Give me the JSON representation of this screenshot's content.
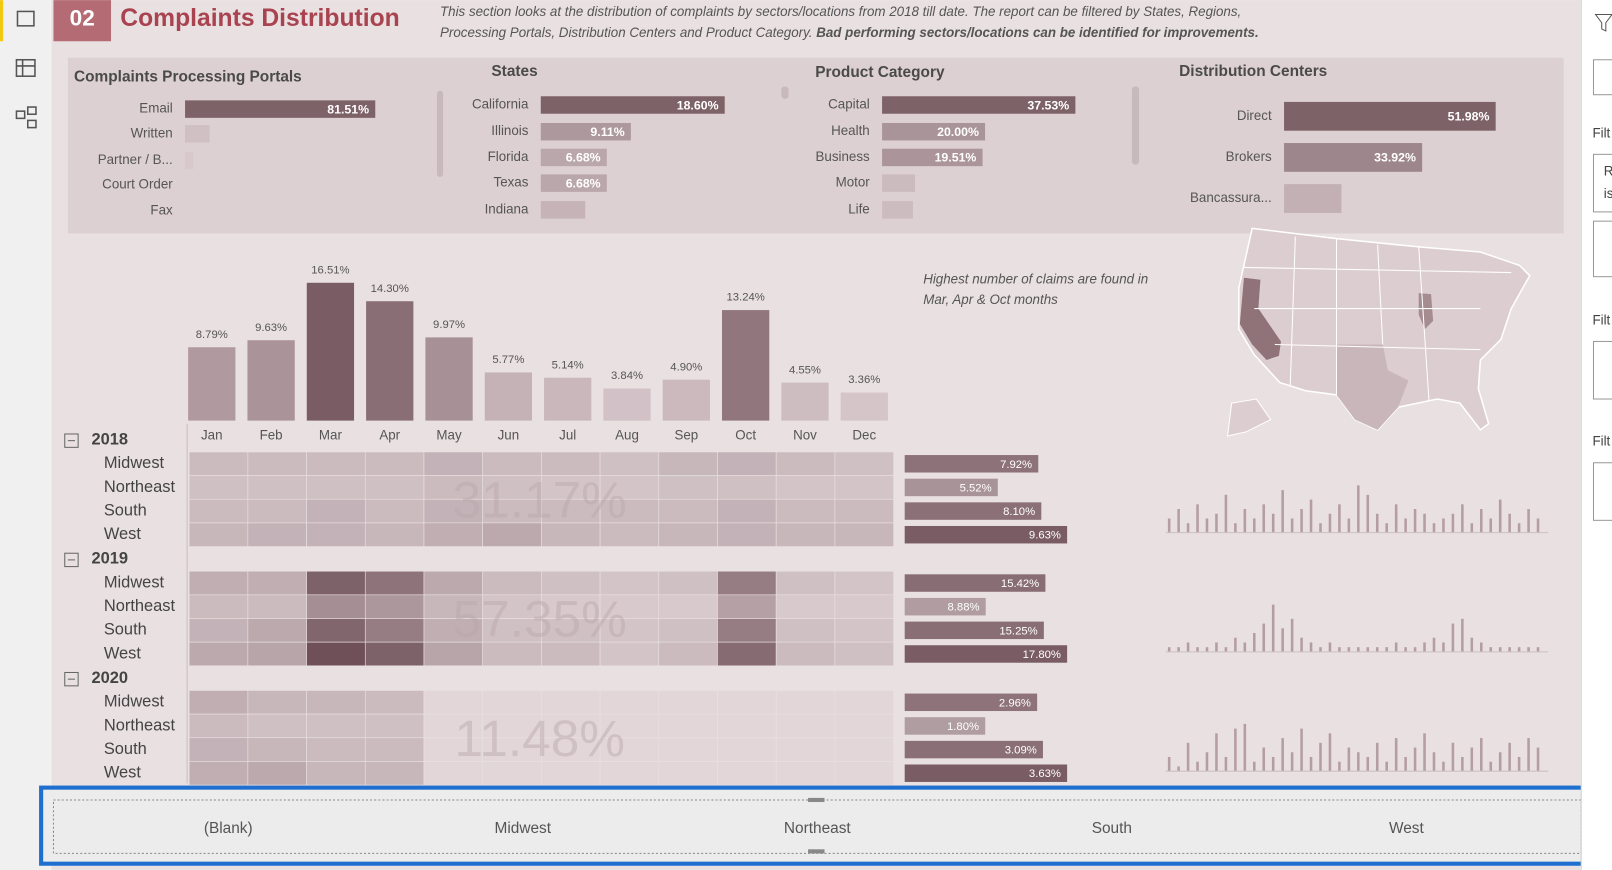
{
  "header": {
    "number": "02",
    "title": "Complaints Distribution",
    "description": [
      "This section looks at the distribution of complaints by sectors/locations from 2018 till date.  The report can be filtered by States, Regions,",
      "Processing Portals, Distribution Centers and Product Category."
    ],
    "description_bold": "Bad performing sectors/locations can be identified for improvements."
  },
  "cards": [
    {
      "title": "Complaints Processing Portals",
      "categories": [
        "Email",
        "Written",
        "Partner / B...",
        "Court Order",
        "Fax"
      ],
      "values": [
        81.51,
        10.5,
        3.5,
        0,
        0
      ],
      "value_labels": [
        "81.51%",
        null,
        null,
        null,
        null
      ]
    },
    {
      "title": "States",
      "categories": [
        "California",
        "Illinois",
        "Florida",
        "Texas",
        "Indiana"
      ],
      "values": [
        18.6,
        9.11,
        6.68,
        6.68,
        4.5
      ],
      "value_labels": [
        "18.60%",
        "9.11%",
        "6.68%",
        "6.68%",
        null
      ]
    },
    {
      "title": "Product Category",
      "categories": [
        "Capital",
        "Health",
        "Business",
        "Motor",
        "Life"
      ],
      "values": [
        37.53,
        20,
        19.51,
        6.4,
        6
      ],
      "value_labels": [
        "37.53%",
        "20.00%",
        "19.51%",
        null,
        null
      ]
    },
    {
      "title": "Distribution Centers",
      "categories": [
        "Direct",
        "Brokers",
        "Bancassura..."
      ],
      "values": [
        51.98,
        33.92,
        14.1
      ],
      "value_labels": [
        "51.98%",
        "33.92%",
        null
      ]
    }
  ],
  "monthly": {
    "categories": [
      "Jan",
      "Feb",
      "Mar",
      "Apr",
      "May",
      "Jun",
      "Jul",
      "Aug",
      "Sep",
      "Oct",
      "Nov",
      "Dec"
    ],
    "values": [
      8.79,
      9.63,
      16.51,
      14.3,
      9.97,
      5.77,
      5.14,
      3.84,
      4.9,
      13.24,
      4.55,
      3.36
    ],
    "value_labels": [
      "8.79%",
      "9.63%",
      "16.51%",
      "14.30%",
      "9.97%",
      "5.77%",
      "5.14%",
      "3.84%",
      "4.90%",
      "13.24%",
      "4.55%",
      "3.36%"
    ]
  },
  "annotation": [
    "Highest number of claims are found in",
    "Mar, Apr & Oct months"
  ],
  "matrix": {
    "years": [
      {
        "year": "2018",
        "total_label": "31.17%",
        "regions": [
          {
            "name": "Midwest",
            "cells": [
              0.6,
              0.6,
              0.6,
              0.6,
              0.8,
              0.6,
              0.6,
              0.5,
              0.7,
              0.8,
              0.6,
              0.5
            ],
            "value": 7.92,
            "value_label": "7.92%"
          },
          {
            "name": "Northeast",
            "cells": [
              0.5,
              0.5,
              0.5,
              0.5,
              0.6,
              0.5,
              0.4,
              0.4,
              0.5,
              0.5,
              0.4,
              0.4
            ],
            "value": 5.52,
            "value_label": "5.52%"
          },
          {
            "name": "South",
            "cells": [
              0.6,
              0.6,
              0.8,
              0.6,
              0.8,
              0.6,
              0.6,
              0.6,
              0.6,
              0.8,
              0.6,
              0.6
            ],
            "value": 8.1,
            "value_label": "8.10%"
          },
          {
            "name": "West",
            "cells": [
              0.7,
              0.8,
              0.8,
              0.7,
              0.9,
              1.0,
              0.7,
              0.6,
              0.7,
              0.8,
              0.7,
              0.7
            ],
            "value": 9.63,
            "value_label": "9.63%"
          }
        ],
        "sparkline": [
          3,
          5,
          2,
          6,
          3,
          4,
          8,
          2,
          5,
          3,
          6,
          4,
          9,
          3,
          5,
          7,
          2,
          4,
          6,
          3,
          10,
          8,
          4,
          2,
          6,
          3,
          5,
          4,
          2,
          3,
          4,
          6,
          2,
          5,
          3,
          7,
          4,
          2,
          5,
          3
        ]
      },
      {
        "year": "2019",
        "total_label": "57.35%",
        "regions": [
          {
            "name": "Midwest",
            "cells": [
              0.9,
              0.9,
              2.6,
              2.2,
              1.0,
              0.6,
              0.5,
              0.4,
              0.5,
              2.0,
              0.5,
              0.4
            ],
            "value": 15.42,
            "value_label": "15.42%"
          },
          {
            "name": "Northeast",
            "cells": [
              0.6,
              0.6,
              1.6,
              1.4,
              0.7,
              0.4,
              0.3,
              0.3,
              0.3,
              1.2,
              0.3,
              0.3
            ],
            "value": 8.88,
            "value_label": "8.88%"
          },
          {
            "name": "South",
            "cells": [
              0.8,
              1.0,
              2.5,
              2.0,
              0.9,
              0.5,
              0.5,
              0.4,
              0.5,
              2.0,
              0.5,
              0.4
            ],
            "value": 15.25,
            "value_label": "15.25%"
          },
          {
            "name": "West",
            "cells": [
              1.0,
              1.1,
              3.0,
              2.6,
              1.1,
              0.6,
              0.6,
              0.4,
              0.6,
              2.4,
              0.6,
              0.5
            ],
            "value": 17.8,
            "value_label": "17.80%"
          }
        ],
        "sparkline": [
          1,
          1,
          2,
          1,
          1,
          2,
          1,
          3,
          2,
          4,
          6,
          10,
          5,
          7,
          3,
          2,
          1,
          2,
          1,
          1,
          1,
          1,
          1,
          1,
          2,
          1,
          1,
          2,
          3,
          2,
          6,
          7,
          3,
          2,
          1,
          1,
          1,
          1,
          1,
          1
        ]
      },
      {
        "year": "2020",
        "total_label": "11.48%",
        "regions": [
          {
            "name": "Midwest",
            "cells": [
              0.9,
              0.7,
              0.7,
              0.6,
              0,
              0,
              0,
              0,
              0,
              0,
              0,
              0
            ],
            "value": 2.96,
            "value_label": "2.96%"
          },
          {
            "name": "Northeast",
            "cells": [
              0.6,
              0.5,
              0.5,
              0.5,
              0,
              0,
              0,
              0,
              0,
              0,
              0,
              0
            ],
            "value": 1.8,
            "value_label": "1.80%"
          },
          {
            "name": "South",
            "cells": [
              0.8,
              0.7,
              0.6,
              0.6,
              0,
              0,
              0,
              0,
              0,
              0,
              0,
              0
            ],
            "value": 3.09,
            "value_label": "3.09%"
          },
          {
            "name": "West",
            "cells": [
              0.9,
              1.0,
              0.7,
              0.7,
              0,
              0,
              0,
              0,
              0,
              0,
              0,
              0
            ],
            "value": 3.63,
            "value_label": "3.63%"
          }
        ],
        "sparkline": [
          3,
          1,
          6,
          2,
          4,
          8,
          3,
          9,
          10,
          2,
          5,
          3,
          7,
          4,
          9,
          3,
          6,
          8,
          2,
          5,
          4,
          3,
          6,
          2,
          7,
          3,
          5,
          8,
          4,
          2,
          6,
          3,
          5,
          7,
          2,
          4,
          6,
          3,
          7,
          5
        ]
      }
    ]
  },
  "slicer": {
    "options": [
      "(Blank)",
      "Midwest",
      "Northeast",
      "South",
      "West"
    ]
  },
  "right_pane": {
    "labels": [
      "Filt",
      "Filt",
      "Filt"
    ],
    "box_text": [
      "R",
      "is"
    ]
  }
}
